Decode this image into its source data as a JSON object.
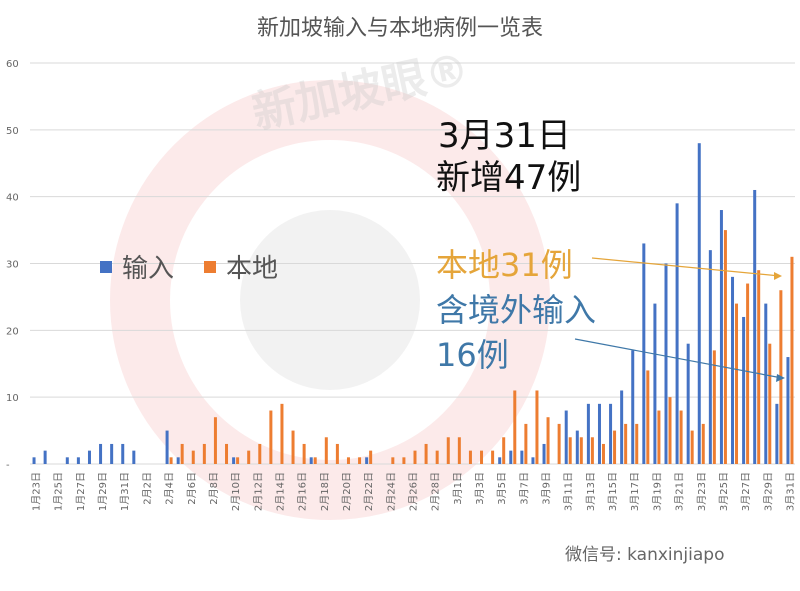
{
  "title": "新加坡输入与本地病例一览表",
  "watermark": "新加坡眼®",
  "legend": {
    "imported": "输入",
    "local": "本地"
  },
  "annotations": {
    "date": "3月31日",
    "total": "新增47例",
    "local": "本地31例",
    "imported_line1": "含境外输入",
    "imported_line2": "16例"
  },
  "footer": "微信号: kanxinjiapo",
  "colors": {
    "imported": "#4472c4",
    "local": "#ed7d31",
    "grid": "#d9d9d9"
  },
  "chart_data": {
    "type": "bar",
    "title": "新加坡输入与本地病例一览表",
    "ylim": [
      0,
      60
    ],
    "yticks": [
      0,
      10,
      20,
      30,
      40,
      50,
      60
    ],
    "ytick_labels": [
      "-",
      "10",
      "20",
      "30",
      "40",
      "50",
      "60"
    ],
    "categories": [
      "1月23日",
      "1月24日",
      "1月25日",
      "1月26日",
      "1月27日",
      "1月28日",
      "1月29日",
      "1月30日",
      "1月31日",
      "2月1日",
      "2月2日",
      "2月3日",
      "2月4日",
      "2月5日",
      "2月6日",
      "2月7日",
      "2月8日",
      "2月9日",
      "2月10日",
      "2月11日",
      "2月12日",
      "2月13日",
      "2月14日",
      "2月15日",
      "2月16日",
      "2月17日",
      "2月18日",
      "2月19日",
      "2月20日",
      "2月21日",
      "2月22日",
      "2月23日",
      "2月24日",
      "2月25日",
      "2月26日",
      "2月27日",
      "2月28日",
      "2月29日",
      "3月1日",
      "3月2日",
      "3月3日",
      "3月4日",
      "3月5日",
      "3月6日",
      "3月7日",
      "3月8日",
      "3月9日",
      "3月10日",
      "3月11日",
      "3月12日",
      "3月13日",
      "3月14日",
      "3月15日",
      "3月16日",
      "3月17日",
      "3月18日",
      "3月19日",
      "3月20日",
      "3月21日",
      "3月22日",
      "3月23日",
      "3月24日",
      "3月25日",
      "3月26日",
      "3月27日",
      "3月28日",
      "3月29日",
      "3月30日",
      "3月31日"
    ],
    "series": [
      {
        "name": "输入",
        "values": [
          1,
          2,
          0,
          1,
          1,
          2,
          3,
          3,
          3,
          2,
          0,
          0,
          5,
          1,
          0,
          0,
          0,
          0,
          1,
          0,
          0,
          0,
          0,
          0,
          0,
          1,
          0,
          0,
          0,
          0,
          1,
          0,
          0,
          0,
          0,
          0,
          0,
          0,
          0,
          0,
          0,
          0,
          1,
          2,
          2,
          1,
          3,
          0,
          8,
          5,
          9,
          9,
          9,
          11,
          17,
          33,
          24,
          30,
          39,
          18,
          48,
          32,
          38,
          28,
          22,
          41,
          24,
          9,
          16
        ]
      },
      {
        "name": "本地",
        "values": [
          0,
          0,
          0,
          0,
          0,
          0,
          0,
          0,
          0,
          0,
          0,
          0,
          1,
          3,
          2,
          3,
          7,
          3,
          1,
          2,
          3,
          8,
          9,
          5,
          3,
          1,
          4,
          3,
          1,
          1,
          2,
          0,
          1,
          1,
          2,
          3,
          2,
          4,
          4,
          2,
          2,
          2,
          4,
          11,
          6,
          11,
          7,
          6,
          4,
          4,
          4,
          3,
          5,
          6,
          6,
          14,
          8,
          10,
          8,
          5,
          6,
          17,
          35,
          24,
          27,
          29,
          18,
          26,
          31
        ]
      }
    ]
  }
}
